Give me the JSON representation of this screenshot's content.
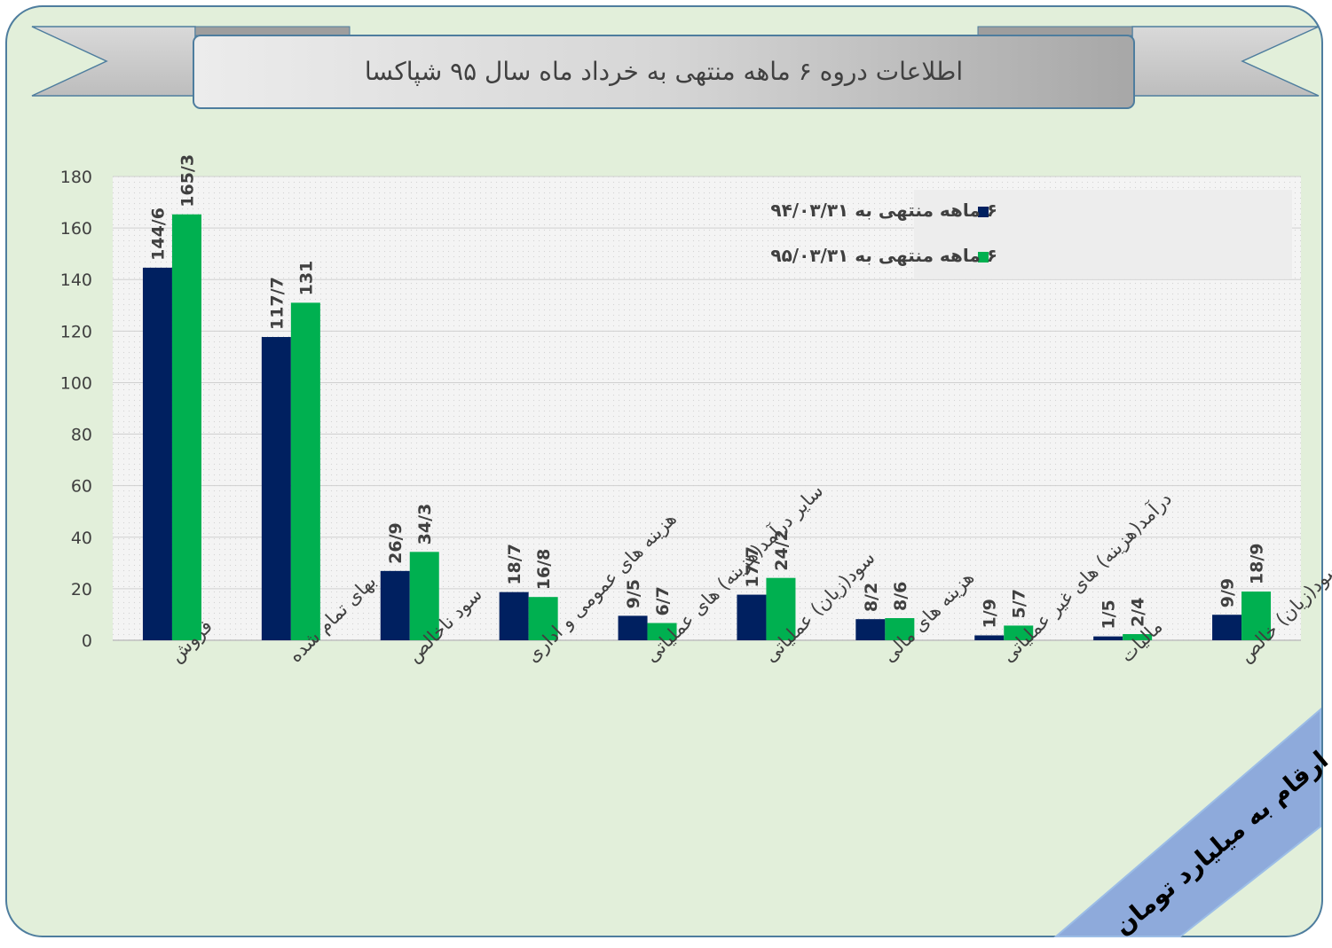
{
  "page_title": "اطلاعات دروه ۶ ماهه منتهی به خرداد ماه سال ۹۵ شپاکسا",
  "unit_note": "ارقام به میلیارد تومان",
  "colors": {
    "series_1": "#002060",
    "series_2": "#00b050",
    "frame_bg": "#e2efda",
    "frame_border": "#4e7d9e",
    "plot_bg": "#f4f4f4",
    "legend_bg": "#ededed",
    "banner": "#8eaadb"
  },
  "chart_data": {
    "type": "bar",
    "categories": [
      "فروش",
      "بهای تمام شده",
      "سود ناخالص",
      "هزینه های عمومی و اداری",
      "سایر درآمد(هزینه) های عملیاتی",
      "سود(زیان) عملیاتی",
      "هزینه های مالی",
      "درآمد(هزینه) های غیر عملیاتی",
      "مالیات",
      "سود(زیان) خالص"
    ],
    "series": [
      {
        "name": "۶ ماهه منتهی به ۹۴/۰۳/۳۱",
        "values": [
          144.6,
          117.7,
          26.9,
          18.7,
          9.5,
          17.7,
          8.2,
          1.9,
          1.5,
          9.9
        ],
        "labels": [
          "144/6",
          "117/7",
          "26/9",
          "18/7",
          "9/5",
          "17/7",
          "8/2",
          "1/9",
          "1/5",
          "9/9"
        ]
      },
      {
        "name": "۶ ماهه منتهی به ۹۵/۰۳/۳۱",
        "values": [
          165.3,
          131,
          34.3,
          16.8,
          6.7,
          24.2,
          8.6,
          5.7,
          2.4,
          18.9
        ],
        "labels": [
          "165/3",
          "131",
          "34/3",
          "16/8",
          "6/7",
          "24/2",
          "8/6",
          "5/7",
          "2/4",
          "18/9"
        ]
      }
    ],
    "ylim": [
      0,
      180
    ],
    "yticks": [
      "0",
      "20",
      "40",
      "60",
      "80",
      "100",
      "120",
      "140",
      "160",
      "180"
    ],
    "grid": true,
    "legend_position": "top-right"
  }
}
